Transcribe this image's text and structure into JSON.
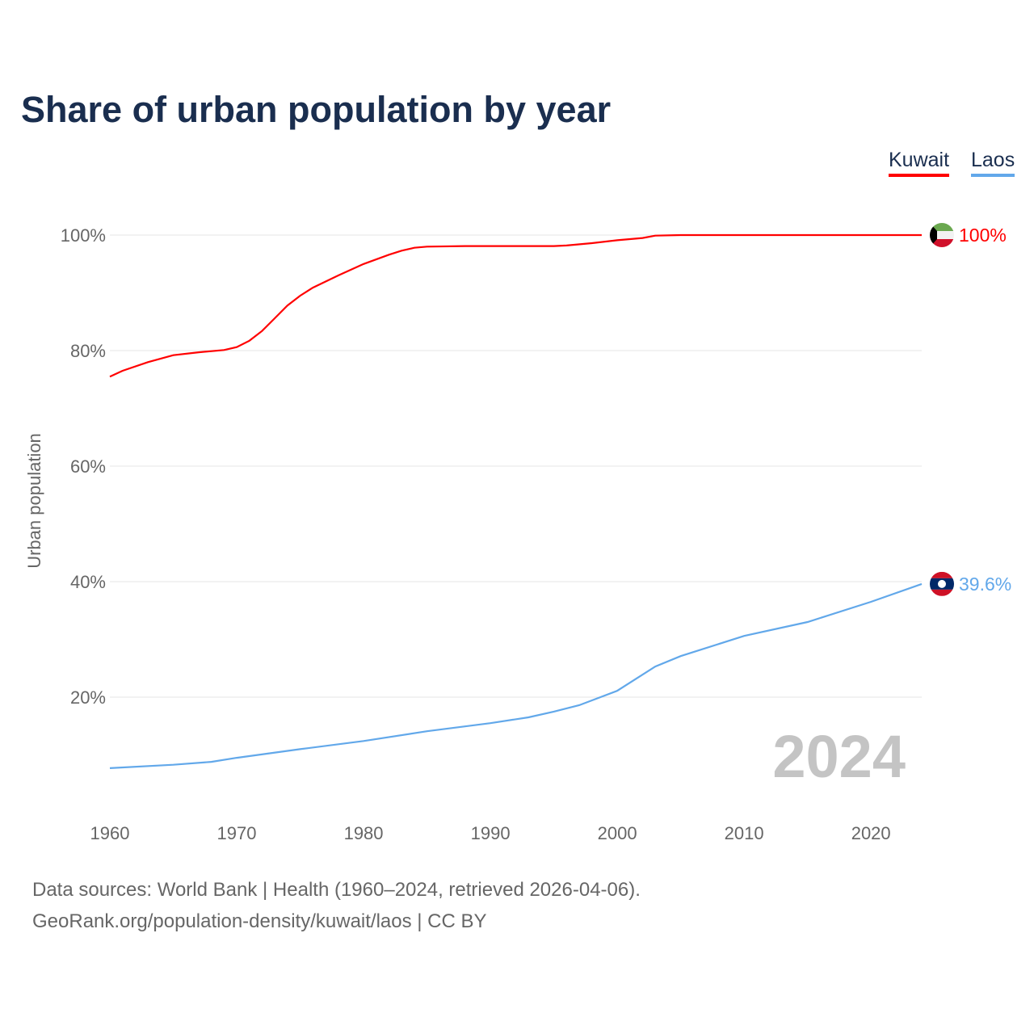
{
  "title": "Share of urban population by year",
  "legend": [
    {
      "name": "Kuwait",
      "color": "#ff0000"
    },
    {
      "name": "Laos",
      "color": "#62a8ea"
    }
  ],
  "footer": {
    "line1": "Data sources: World Bank | Health (1960–2024, retrieved 2026-04-06).",
    "line2": "GeoRank.org/population-density/kuwait/laos | CC BY"
  },
  "chart_data": {
    "type": "line",
    "title": "Share of urban population by year",
    "xlabel": "",
    "ylabel": "Urban population",
    "xlim": [
      1960,
      2024
    ],
    "ylim": [
      0,
      100
    ],
    "yticks": [
      20,
      40,
      60,
      80,
      100
    ],
    "ytick_labels": [
      "20%",
      "40%",
      "60%",
      "80%",
      "100%"
    ],
    "xticks": [
      1960,
      1970,
      1980,
      1990,
      2000,
      2010,
      2020
    ],
    "xtick_labels": [
      "1960",
      "1970",
      "1980",
      "1990",
      "2000",
      "2010",
      "2020"
    ],
    "year_label": "2024",
    "series": [
      {
        "name": "Kuwait",
        "color": "#ff0000",
        "end_label": "100%",
        "x": [
          1960,
          1961,
          1963,
          1965,
          1967,
          1969,
          1970,
          1971,
          1972,
          1973,
          1974,
          1975,
          1976,
          1978,
          1980,
          1982,
          1983,
          1984,
          1985,
          1988,
          1990,
          1995,
          1996,
          1998,
          2000,
          2002,
          2003,
          2005,
          2010,
          2015,
          2020,
          2024
        ],
        "y": [
          75.5,
          76.5,
          78.0,
          79.2,
          79.7,
          80.1,
          80.6,
          81.7,
          83.4,
          85.6,
          87.8,
          89.5,
          90.9,
          93.0,
          95.0,
          96.6,
          97.3,
          97.8,
          98.0,
          98.1,
          98.1,
          98.1,
          98.2,
          98.6,
          99.1,
          99.5,
          99.9,
          100,
          100,
          100,
          100,
          100
        ]
      },
      {
        "name": "Laos",
        "color": "#62a8ea",
        "end_label": "39.6%",
        "x": [
          1960,
          1965,
          1968,
          1970,
          1975,
          1980,
          1985,
          1990,
          1993,
          1995,
          1997,
          2000,
          2003,
          2005,
          2010,
          2015,
          2020,
          2024
        ],
        "y": [
          7.7,
          8.3,
          8.8,
          9.5,
          11.0,
          12.4,
          14.1,
          15.5,
          16.5,
          17.5,
          18.6,
          21.1,
          25.3,
          27.1,
          30.6,
          33.0,
          36.5,
          39.6
        ]
      }
    ]
  }
}
